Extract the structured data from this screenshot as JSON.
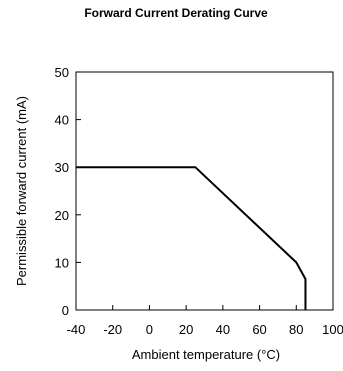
{
  "chart_data": {
    "type": "line",
    "title": "Forward Current Derating  Curve",
    "xlabel": "Ambient temperature (°C)",
    "ylabel": "Permissible forward current (mA)",
    "xlim": [
      -40,
      100
    ],
    "ylim": [
      0,
      50
    ],
    "x_ticks": [
      "-40",
      "-20",
      "0",
      "20",
      "40",
      "60",
      "80",
      "100"
    ],
    "y_ticks": [
      "0",
      "10",
      "20",
      "30",
      "40",
      "50"
    ],
    "grid": false,
    "legend": "none",
    "series": [
      {
        "x": [
          -40,
          25,
          80,
          85,
          85
        ],
        "y": [
          30,
          30,
          10,
          6.5,
          0
        ],
        "color": "#000000"
      }
    ]
  }
}
